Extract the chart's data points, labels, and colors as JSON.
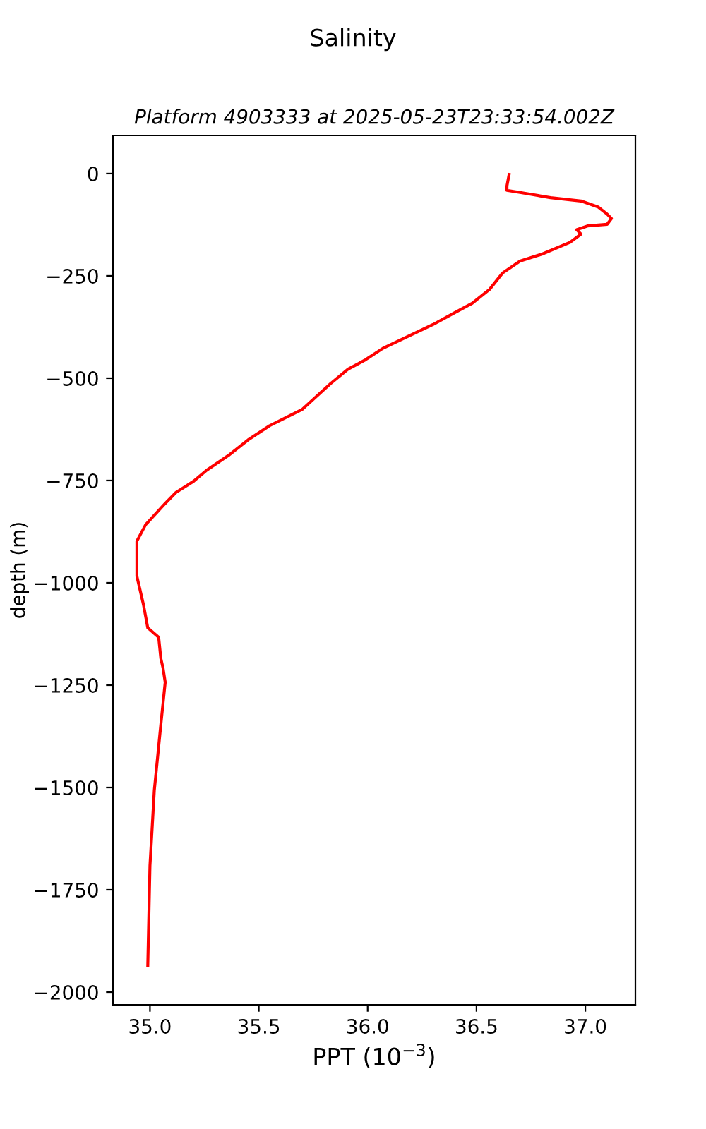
{
  "chart_data": {
    "type": "line",
    "title": "Salinity",
    "subtitle": "Platform 4903333 at 2025-05-23T23:33:54.002Z",
    "xlabel": "PPT (10$^{−3}$)",
    "ylabel": "depth (m)",
    "series": [
      {
        "color": "#ff0000",
        "x": [
          36.65,
          36.64,
          36.64,
          36.71,
          36.84,
          36.98,
          37.06,
          37.1,
          37.12,
          37.1,
          37.01,
          36.96,
          36.98,
          36.93,
          36.8,
          36.7,
          36.62,
          36.56,
          36.48,
          36.4,
          36.3,
          36.07,
          35.99,
          35.91,
          35.83,
          35.7,
          35.55,
          35.45,
          35.36,
          35.26,
          35.2,
          35.12,
          35.07,
          34.98,
          34.94,
          34.94,
          34.94,
          34.97,
          34.99,
          35.04,
          35.05,
          35.06,
          35.07,
          35.05,
          35.02,
          35.0,
          34.99
        ],
        "values": [
          -2,
          -30,
          -41,
          -47,
          -59,
          -67,
          -82,
          -99,
          -110,
          -124,
          -128,
          -137,
          -148,
          -168,
          -197,
          -214,
          -243,
          -283,
          -317,
          -340,
          -369,
          -427,
          -455,
          -478,
          -513,
          -576,
          -616,
          -651,
          -689,
          -725,
          -752,
          -779,
          -806,
          -858,
          -898,
          -955,
          -984,
          -1053,
          -1110,
          -1133,
          -1185,
          -1208,
          -1243,
          -1346,
          -1507,
          -1691,
          -1936
        ]
      }
    ],
    "xlim": [
      34.83,
      37.23
    ],
    "ylim": [
      -2031,
      93
    ],
    "xticks": [
      {
        "value": 35,
        "label": "35.0"
      },
      35.5,
      {
        "value": 36,
        "label": "36.0"
      },
      36.5,
      {
        "value": 37,
        "label": "37.0"
      }
    ],
    "yticks": [
      -2000,
      -1750,
      -1500,
      -1250,
      -1000,
      -750,
      -500,
      -250,
      0
    ],
    "grid": false,
    "legend": false,
    "line_style": "solid",
    "marker": "none"
  }
}
